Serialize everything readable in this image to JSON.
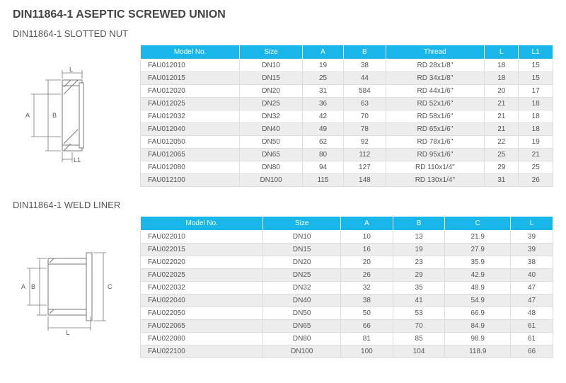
{
  "main_title": "DIN11864-1 ASEPTIC SCREWED UNION",
  "section1": {
    "title": "DIN11864-1 SLOTTED NUT",
    "diagram_labels": {
      "L": "L",
      "A": "A",
      "B": "B",
      "L1": "L1"
    },
    "columns": [
      "Model No.",
      "Size",
      "A",
      "B",
      "Thread",
      "L",
      "L1"
    ],
    "rows": [
      [
        "FAU012010",
        "DN10",
        "19",
        "38",
        "RD 28x1/8\"",
        "18",
        "15"
      ],
      [
        "FAU012015",
        "DN15",
        "25",
        "44",
        "RD 34x1/8\"",
        "18",
        "15"
      ],
      [
        "FAU012020",
        "DN20",
        "31",
        "584",
        "RD 44x1/6\"",
        "20",
        "17"
      ],
      [
        "FAU012025",
        "DN25",
        "36",
        "63",
        "RD 52x1/6\"",
        "21",
        "18"
      ],
      [
        "FAU012032",
        "DN32",
        "42",
        "70",
        "RD 58x1/6\"",
        "21",
        "18"
      ],
      [
        "FAU012040",
        "DN40",
        "49",
        "78",
        "RD 65x1/6\"",
        "21",
        "18"
      ],
      [
        "FAU012050",
        "DN50",
        "62",
        "92",
        "RD 78x1/6\"",
        "22",
        "19"
      ],
      [
        "FAU012065",
        "DN65",
        "80",
        "112",
        "RD 95x1/6\"",
        "25",
        "21"
      ],
      [
        "FAU012080",
        "DN80",
        "94",
        "127",
        "RD 110x1/4\"",
        "29",
        "25"
      ],
      [
        "FAU012100",
        "DN100",
        "115",
        "148",
        "RD 130x1/4\"",
        "31",
        "26"
      ]
    ]
  },
  "section2": {
    "title": "DIN11864-1 WELD LINER",
    "diagram_labels": {
      "L": "L",
      "A": "A",
      "B": "B",
      "C": "C"
    },
    "columns": [
      "Model No.",
      "Size",
      "A",
      "B",
      "C",
      "L"
    ],
    "rows": [
      [
        "FAU022010",
        "DN10",
        "10",
        "13",
        "21.9",
        "39"
      ],
      [
        "FAU022015",
        "DN15",
        "16",
        "19",
        "27.9",
        "39"
      ],
      [
        "FAU022020",
        "DN20",
        "20",
        "23",
        "35.9",
        "38"
      ],
      [
        "FAU022025",
        "DN25",
        "26",
        "29",
        "42.9",
        "40"
      ],
      [
        "FAU022032",
        "DN32",
        "32",
        "35",
        "48.9",
        "47"
      ],
      [
        "FAU022040",
        "DN40",
        "38",
        "41",
        "54.9",
        "47"
      ],
      [
        "FAU022050",
        "DN50",
        "50",
        "53",
        "66.9",
        "48"
      ],
      [
        "FAU022065",
        "DN65",
        "66",
        "70",
        "84.9",
        "61"
      ],
      [
        "FAU022080",
        "DN80",
        "81",
        "85",
        "98.9",
        "61"
      ],
      [
        "FAU022100",
        "DN100",
        "100",
        "104",
        "118.9",
        "66"
      ]
    ]
  },
  "style": {
    "header_bg": "#19b6e9",
    "header_fg": "#ffffff",
    "row_alt_bg": "#ededed",
    "border_color": "#dddddd",
    "text_color": "#555555",
    "diagram_stroke": "#777777"
  }
}
